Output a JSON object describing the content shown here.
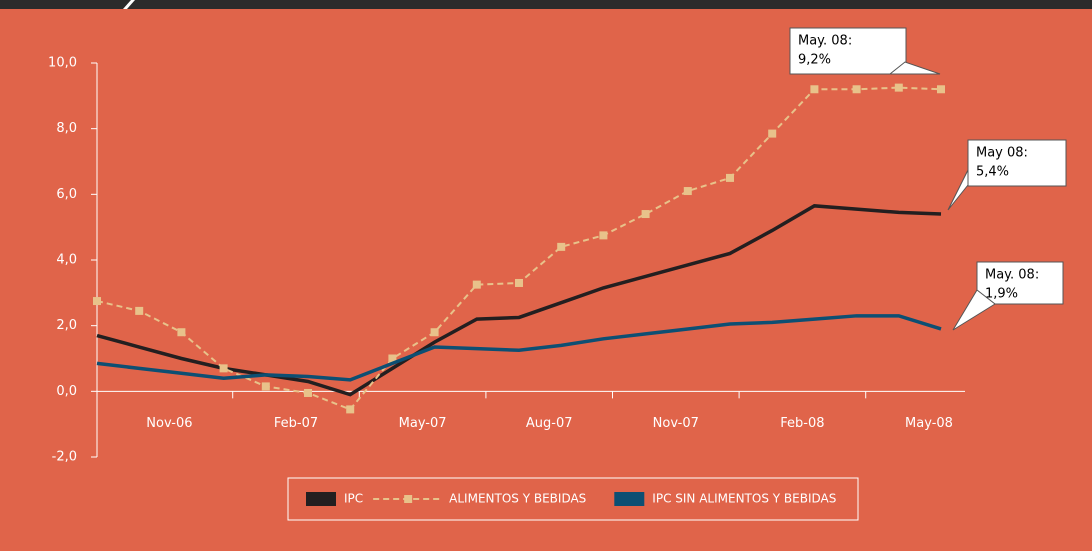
{
  "chart_data": {
    "type": "line",
    "categories": [
      null,
      null,
      "Nov-06",
      null,
      null,
      "Feb-07",
      null,
      null,
      "May-07",
      null,
      null,
      "Aug-07",
      null,
      null,
      "Nov-07",
      null,
      null,
      "Feb-08",
      null,
      null,
      "May-08"
    ],
    "series": [
      {
        "name": "IPC",
        "color": "#231f20",
        "dash": false,
        "markers": false,
        "values": [
          1.7,
          1.35,
          1.0,
          0.7,
          0.5,
          0.3,
          -0.1,
          0.7,
          1.5,
          2.2,
          2.25,
          2.7,
          3.15,
          3.5,
          3.85,
          4.2,
          4.9,
          5.65,
          5.55,
          5.45,
          5.4
        ]
      },
      {
        "name": "ALIMENTOS Y BEBIDAS",
        "color": "#e8c28a",
        "dash": true,
        "markers": true,
        "values": [
          2.75,
          2.45,
          1.8,
          0.7,
          0.15,
          -0.05,
          -0.55,
          1.0,
          1.8,
          3.25,
          3.3,
          4.4,
          4.75,
          5.4,
          6.1,
          6.5,
          7.85,
          9.2,
          9.2,
          9.25,
          9.2
        ]
      },
      {
        "name": "IPC SIN ALIMENTOS Y BEBIDAS",
        "color": "#0d4f73",
        "dash": false,
        "markers": false,
        "values": [
          0.85,
          0.7,
          0.55,
          0.4,
          0.5,
          0.45,
          0.35,
          0.85,
          1.35,
          1.3,
          1.25,
          1.4,
          1.6,
          1.75,
          1.9,
          2.05,
          2.1,
          2.2,
          2.3,
          2.3,
          1.9
        ]
      }
    ],
    "ylim": [
      -2,
      10
    ],
    "yticks": [
      {
        "value": -2,
        "label": "-2,0"
      },
      {
        "value": 0,
        "label": "0,0"
      },
      {
        "value": 2,
        "label": "2,0"
      },
      {
        "value": 4,
        "label": "4,0"
      },
      {
        "value": 6,
        "label": "6,0"
      },
      {
        "value": 8,
        "label": "8,0"
      },
      {
        "value": 10,
        "label": "10,0"
      }
    ],
    "annotations": [
      {
        "line1": "May. 08:",
        "line2": "9,2%"
      },
      {
        "line1": "May 08:",
        "line2": "5,4%"
      },
      {
        "line1": "May. 08:",
        "line2": "1,9%"
      }
    ]
  }
}
